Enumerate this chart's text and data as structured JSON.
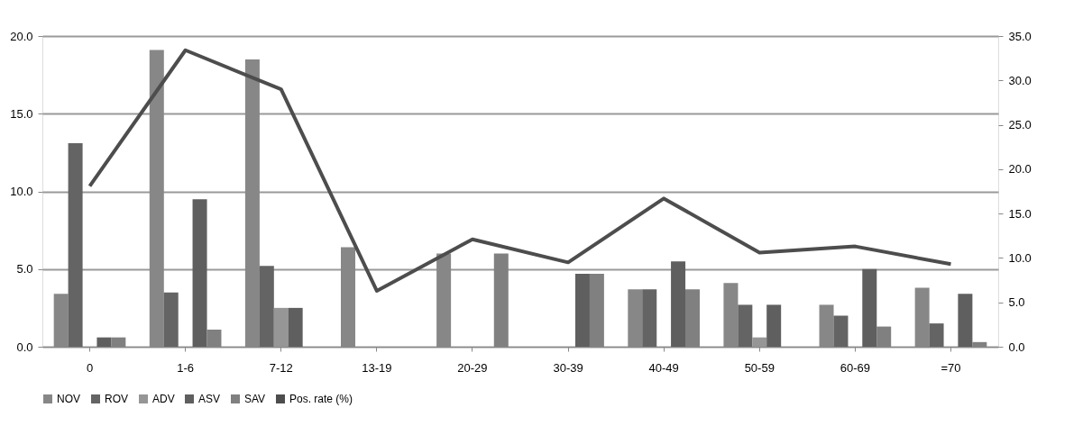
{
  "chart_data": {
    "type": "bar",
    "categories": [
      "0",
      "1-6",
      "7-12",
      "13-19",
      "20-29",
      "30-39",
      "40-49",
      "50-59",
      "60-69",
      "=70"
    ],
    "series": [
      {
        "name": "NOV",
        "color": "#878787",
        "values": [
          3.4,
          19.1,
          18.5,
          6.4,
          6.0,
          0,
          3.7,
          4.1,
          2.7,
          3.8
        ]
      },
      {
        "name": "ROV",
        "color": "#646464",
        "values": [
          13.1,
          3.5,
          5.2,
          0,
          0,
          0,
          3.7,
          2.7,
          2.0,
          1.5
        ]
      },
      {
        "name": "ADV",
        "color": "#969696",
        "values": [
          0,
          0,
          2.5,
          0,
          0,
          0,
          0,
          0.6,
          0,
          0
        ]
      },
      {
        "name": "ASV",
        "color": "#5f5f5f",
        "values": [
          0.6,
          9.5,
          2.5,
          0,
          0,
          4.7,
          5.5,
          2.7,
          5.0,
          3.4
        ]
      },
      {
        "name": "SAV",
        "color": "#808080",
        "values": [
          0.6,
          1.1,
          0,
          0,
          6.0,
          4.7,
          3.7,
          0,
          1.3,
          0.3
        ]
      },
      {
        "name": "Pos. rate (%)",
        "type": "line",
        "axis": "y2",
        "color": "#4d4d4d",
        "values": [
          18.1,
          33.4,
          29.0,
          6.3,
          12.1,
          9.5,
          16.7,
          10.6,
          11.3,
          9.3
        ]
      }
    ],
    "ylim": [
      0,
      20
    ],
    "yticks": [
      {
        "value": 0,
        "label": "0.0"
      },
      {
        "value": 5,
        "label": "5.0"
      },
      {
        "value": 10,
        "label": "10.0"
      },
      {
        "value": 15,
        "label": "15.0"
      },
      {
        "value": 20,
        "label": "20.0"
      }
    ],
    "y2lim": [
      0,
      35
    ],
    "y2ticks": [
      {
        "value": 0,
        "label": "0.0"
      },
      {
        "value": 5,
        "label": "5.0"
      },
      {
        "value": 10,
        "label": "10.0"
      },
      {
        "value": 15,
        "label": "15.0"
      },
      {
        "value": 20,
        "label": "20.0"
      },
      {
        "value": 25,
        "label": "25.0"
      },
      {
        "value": 30,
        "label": "30.0"
      },
      {
        "value": 35,
        "label": "35.0"
      }
    ],
    "grid": "y",
    "legend": "bottom"
  }
}
